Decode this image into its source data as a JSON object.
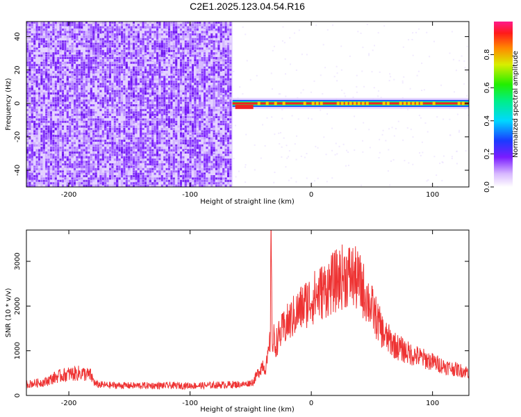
{
  "title": "C2E1.2025.123.04.54.R16",
  "chart_data": [
    {
      "type": "heatmap",
      "xlabel": "Height of straight line (km)",
      "ylabel": "Frequency (Hz)",
      "xlim": [
        -235,
        130
      ],
      "ylim": [
        -50,
        49
      ],
      "xticks": [
        -200,
        -100,
        0,
        100
      ],
      "yticks": [
        -40,
        -20,
        0,
        20,
        40
      ],
      "colorbar": {
        "label": "Normalized spectral amplitude",
        "range": [
          0,
          1
        ],
        "ticks": [
          "0.0",
          "0.2",
          "0.4",
          "0.6",
          "0.8"
        ]
      },
      "regions": [
        {
          "x_range": [
            -235,
            -65
          ],
          "description_value": "noise",
          "amplitude": 0.15
        },
        {
          "x_range": [
            -65,
            130
          ],
          "frequency": 0,
          "amplitude": 0.95
        }
      ]
    },
    {
      "type": "line",
      "xlabel": "Height of straight line (km)",
      "ylabel": "SNR (10 * v/v)",
      "xlim": [
        -235,
        130
      ],
      "ylim": [
        0,
        3700
      ],
      "xticks": [
        -200,
        -100,
        0,
        100
      ],
      "yticks": [
        0,
        1000,
        2000,
        3000
      ],
      "series": [
        {
          "color": "#ee3333",
          "x": [
            -235,
            -220,
            -210,
            -200,
            -190,
            -182,
            -178,
            -170,
            -150,
            -130,
            -110,
            -90,
            -70,
            -55,
            -48,
            -44,
            -40,
            -38,
            -36,
            -34,
            -33,
            -32,
            -31,
            -30,
            -28,
            -25,
            -20,
            -15,
            -10,
            -5,
            0,
            5,
            10,
            15,
            20,
            25,
            30,
            35,
            40,
            45,
            50,
            55,
            60,
            70,
            80,
            90,
            100,
            110,
            120,
            130
          ],
          "y": [
            250,
            300,
            420,
            480,
            500,
            450,
            250,
            230,
            220,
            220,
            220,
            220,
            240,
            250,
            300,
            500,
            700,
            600,
            800,
            1200,
            3650,
            900,
            1300,
            1100,
            1250,
            1400,
            1600,
            1750,
            1900,
            2050,
            2150,
            2250,
            2350,
            2450,
            2550,
            2650,
            2700,
            2650,
            2500,
            2250,
            1950,
            1650,
            1350,
            1100,
            950,
            850,
            750,
            650,
            580,
            520
          ]
        }
      ]
    }
  ]
}
